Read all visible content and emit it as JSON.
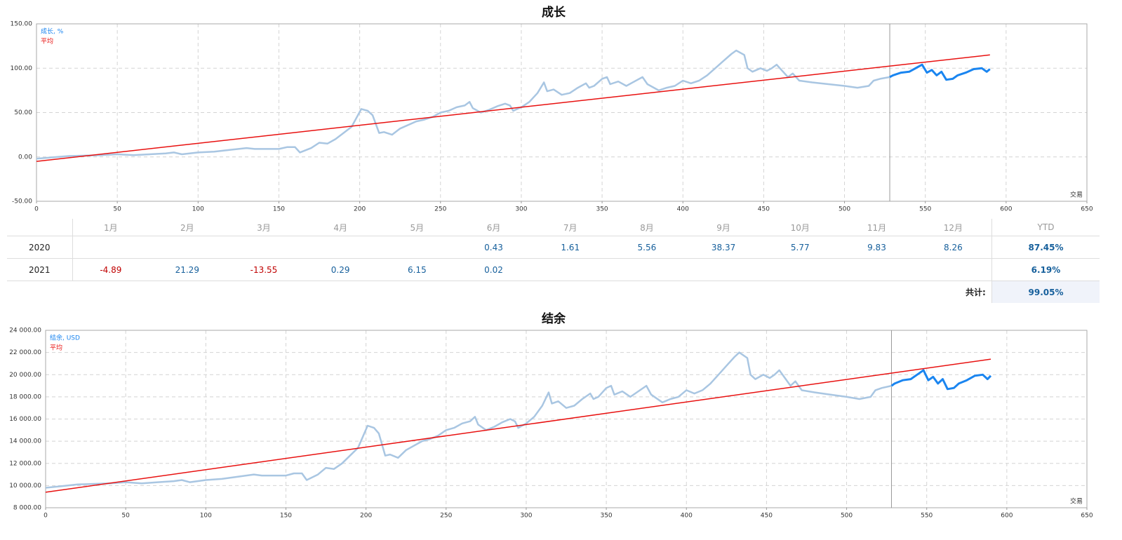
{
  "chart_data": [
    {
      "type": "line",
      "title": "成长",
      "xlabel": "交易",
      "xlim": [
        0,
        650
      ],
      "xticks": [
        0,
        50,
        100,
        150,
        200,
        250,
        300,
        350,
        400,
        450,
        500,
        550,
        600,
        650
      ],
      "ylim": [
        -50,
        150
      ],
      "yticks": [
        {
          "value": -50,
          "label": "-50.00"
        },
        {
          "value": 0,
          "label": "0.00"
        },
        {
          "value": 50,
          "label": "50.00"
        },
        {
          "value": 100,
          "label": "100.00"
        },
        {
          "value": 150,
          "label": "150.00"
        }
      ],
      "grid": true,
      "legend": "upper left",
      "divider_x": 528,
      "series": [
        {
          "name": "成长, %",
          "color": "#a9c6e2",
          "recent_color": "#1a85f0",
          "x": [
            0,
            10,
            20,
            30,
            40,
            50,
            60,
            70,
            80,
            85,
            90,
            100,
            110,
            120,
            130,
            135,
            140,
            150,
            155,
            160,
            163,
            170,
            175,
            180,
            185,
            190,
            195,
            201,
            205,
            208,
            212,
            215,
            220,
            225,
            235,
            240,
            245,
            250,
            255,
            260,
            265,
            268,
            270,
            275,
            280,
            285,
            290,
            293,
            295,
            300,
            305,
            310,
            314,
            316,
            320,
            325,
            330,
            335,
            340,
            342,
            345,
            350,
            353,
            355,
            360,
            365,
            370,
            375,
            378,
            385,
            390,
            395,
            400,
            405,
            410,
            415,
            420,
            425,
            430,
            433,
            438,
            440,
            443,
            448,
            452,
            455,
            458,
            462,
            465,
            468,
            472,
            480,
            490,
            500,
            508,
            515,
            518,
            522,
            528,
            530,
            535,
            540,
            545,
            548,
            551,
            554,
            557,
            560,
            563,
            567,
            570,
            575,
            580,
            585,
            588,
            590
          ],
          "values": [
            -2,
            -0.5,
            1,
            1.5,
            2,
            3,
            2,
            3,
            4,
            5,
            3,
            5,
            6,
            8,
            10,
            9,
            9,
            9,
            11,
            11,
            5,
            10,
            16,
            15,
            20,
            27,
            34,
            54,
            52,
            47,
            27,
            28,
            25,
            32,
            40,
            42,
            45,
            50,
            52,
            56,
            58,
            62,
            55,
            50,
            53,
            57,
            60,
            58,
            52,
            56,
            62,
            72,
            84,
            74,
            76,
            70,
            72,
            78,
            83,
            78,
            80,
            88,
            90,
            82,
            85,
            80,
            85,
            90,
            82,
            75,
            78,
            80,
            86,
            83,
            86,
            92,
            100,
            108,
            116,
            120,
            115,
            100,
            96,
            100,
            97,
            100,
            104,
            96,
            90,
            94,
            86,
            84,
            82,
            80,
            78,
            80,
            86,
            88,
            90,
            92,
            95,
            96,
            101,
            104,
            95,
            98,
            92,
            96,
            87,
            88,
            92,
            95,
            99,
            100,
            96,
            99.05
          ]
        },
        {
          "name": "平均",
          "color": "#e8100f",
          "x": [
            0,
            590
          ],
          "values": [
            -5,
            115
          ]
        }
      ]
    },
    {
      "type": "line",
      "title": "结余",
      "xlabel": "交易",
      "xlim": [
        0,
        650
      ],
      "xticks": [
        0,
        50,
        100,
        150,
        200,
        250,
        300,
        350,
        400,
        450,
        500,
        550,
        600,
        650
      ],
      "ylim": [
        8000,
        24000
      ],
      "yticks": [
        {
          "value": 8000,
          "label": "8 000.00"
        },
        {
          "value": 10000,
          "label": "10 000.00"
        },
        {
          "value": 12000,
          "label": "12 000.00"
        },
        {
          "value": 14000,
          "label": "14 000.00"
        },
        {
          "value": 16000,
          "label": "16 000.00"
        },
        {
          "value": 18000,
          "label": "18 000.00"
        },
        {
          "value": 20000,
          "label": "20 000.00"
        },
        {
          "value": 22000,
          "label": "22 000.00"
        },
        {
          "value": 24000,
          "label": "24 000.00"
        }
      ],
      "grid": true,
      "legend": "upper left",
      "divider_x": 528,
      "series": [
        {
          "name": "结余, USD",
          "color": "#a9c6e2",
          "recent_color": "#1a85f0",
          "x": [
            0,
            10,
            20,
            30,
            40,
            50,
            60,
            70,
            80,
            85,
            90,
            100,
            110,
            120,
            130,
            135,
            140,
            150,
            155,
            160,
            163,
            170,
            175,
            180,
            185,
            190,
            195,
            201,
            205,
            208,
            212,
            215,
            220,
            225,
            235,
            240,
            245,
            250,
            255,
            260,
            265,
            268,
            270,
            275,
            280,
            285,
            290,
            293,
            295,
            300,
            305,
            310,
            314,
            316,
            320,
            325,
            330,
            335,
            340,
            342,
            345,
            350,
            353,
            355,
            360,
            365,
            370,
            375,
            378,
            385,
            390,
            395,
            400,
            405,
            410,
            415,
            420,
            425,
            430,
            433,
            438,
            440,
            443,
            448,
            452,
            455,
            458,
            462,
            465,
            468,
            472,
            480,
            490,
            500,
            508,
            515,
            518,
            522,
            528,
            530,
            535,
            540,
            545,
            548,
            551,
            554,
            557,
            560,
            563,
            567,
            570,
            575,
            580,
            585,
            588,
            590
          ],
          "values": [
            9800,
            9950,
            10100,
            10150,
            10200,
            10300,
            10200,
            10300,
            10400,
            10500,
            10300,
            10500,
            10600,
            10800,
            11000,
            10900,
            10900,
            10900,
            11100,
            11100,
            10500,
            11000,
            11600,
            11500,
            12000,
            12700,
            13400,
            15400,
            15200,
            14700,
            12700,
            12800,
            12500,
            13200,
            14000,
            14200,
            14500,
            15000,
            15200,
            15600,
            15800,
            16200,
            15500,
            15000,
            15300,
            15700,
            16000,
            15800,
            15200,
            15600,
            16200,
            17200,
            18400,
            17400,
            17600,
            17000,
            17200,
            17800,
            18300,
            17800,
            18000,
            18800,
            19000,
            18200,
            18500,
            18000,
            18500,
            19000,
            18200,
            17500,
            17800,
            18000,
            18600,
            18300,
            18600,
            19200,
            20000,
            20800,
            21600,
            22000,
            21500,
            20000,
            19600,
            20000,
            19700,
            20000,
            20400,
            19600,
            19000,
            19400,
            18600,
            18400,
            18200,
            18000,
            17800,
            18000,
            18600,
            18800,
            19000,
            19200,
            19500,
            19600,
            20100,
            20400,
            19500,
            19800,
            19200,
            19600,
            18700,
            18800,
            19200,
            19500,
            19900,
            20000,
            19600,
            19905
          ]
        },
        {
          "name": "平均",
          "color": "#e8100f",
          "x": [
            0,
            590
          ],
          "values": [
            9400,
            21400
          ]
        }
      ]
    }
  ],
  "table": {
    "columns": [
      "1月",
      "2月",
      "3月",
      "4月",
      "5月",
      "6月",
      "7月",
      "8月",
      "9月",
      "10月",
      "11月",
      "12月",
      "YTD"
    ],
    "rows": [
      {
        "year": "2020",
        "values": [
          null,
          null,
          null,
          null,
          null,
          0.43,
          1.61,
          5.56,
          38.37,
          5.77,
          9.83,
          8.26
        ],
        "ytd": "87.45%"
      },
      {
        "year": "2021",
        "values": [
          -4.89,
          21.29,
          -13.55,
          0.29,
          6.15,
          0.02,
          null,
          null,
          null,
          null,
          null,
          null
        ],
        "ytd": "6.19%"
      }
    ],
    "total": {
      "label": "共计:",
      "value": "99.05%"
    }
  }
}
